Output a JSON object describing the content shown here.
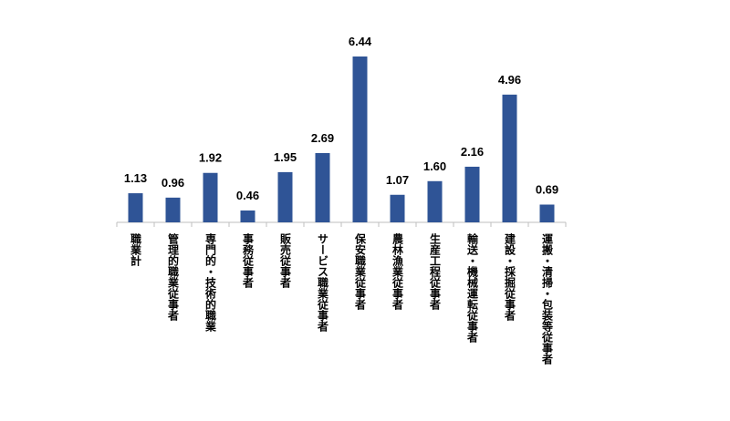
{
  "chart_data": {
    "type": "bar",
    "title": "",
    "xlabel": "",
    "ylabel": "",
    "ylim": [
      0,
      6.44
    ],
    "grid": false,
    "legend": "none",
    "bar_color": "#2F5496",
    "categories": [
      "職業計",
      "管理的職業従事者",
      "専門的・技術的職業",
      "事務従事者",
      "販売従事者",
      "サービス職業従事者",
      "保安職業従事者",
      "農林漁業従事者",
      "生産工程従事者",
      "輸送・機械運転従事者",
      "建設・採掘従事者",
      "運搬・清掃・包装等従事者"
    ],
    "values": [
      1.13,
      0.96,
      1.92,
      0.46,
      1.95,
      2.69,
      6.44,
      1.07,
      1.6,
      2.16,
      4.96,
      0.69
    ],
    "value_labels": [
      "1.13",
      "0.96",
      "1.92",
      "0.46",
      "1.95",
      "2.69",
      "6.44",
      "1.07",
      "1.60",
      "2.16",
      "4.96",
      "0.69"
    ]
  }
}
